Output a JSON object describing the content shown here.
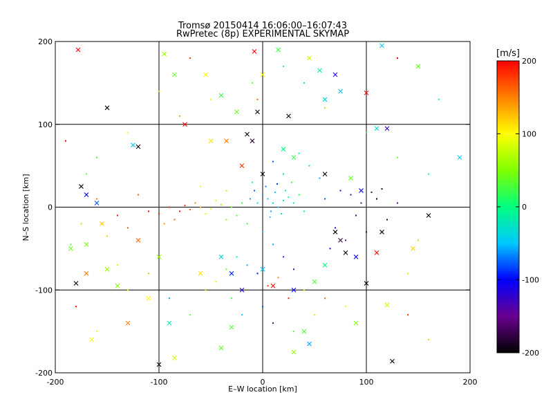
{
  "chart_data": {
    "type": "scatter",
    "title_line1": "Tromsø 20150414 16:06:00–16:07:43",
    "title_line2": "RwPretec (8p) EXPERIMENTAL SKYMAP",
    "xlabel": "E–W location [km]",
    "ylabel": "N–S location [km]",
    "xlim": [
      -200,
      200
    ],
    "ylim": [
      -200,
      200
    ],
    "xticks": [
      -200,
      -100,
      0,
      100,
      200
    ],
    "yticks": [
      -200,
      -100,
      0,
      100,
      200
    ],
    "grid_lines": [
      -100,
      0,
      100
    ],
    "grid": true,
    "color_variable": "velocity",
    "colorbar": {
      "unit_label": "[m/s]",
      "range": [
        -200,
        200
      ],
      "ticks": [
        200,
        100,
        0,
        -100,
        -200
      ],
      "stops": [
        {
          "v": -200,
          "color": "#000000"
        },
        {
          "v": -150,
          "color": "#6a0090"
        },
        {
          "v": -100,
          "color": "#0000ff"
        },
        {
          "v": -50,
          "color": "#00c8ff"
        },
        {
          "v": 0,
          "color": "#00ff80"
        },
        {
          "v": 50,
          "color": "#80ff00"
        },
        {
          "v": 100,
          "color": "#ffff00"
        },
        {
          "v": 150,
          "color": "#ff8000"
        },
        {
          "v": 200,
          "color": "#ff0000"
        }
      ]
    },
    "markers": {
      "small": "dot",
      "large": "x"
    },
    "points": [
      {
        "x": 5,
        "y": 10,
        "v": -50,
        "m": "dot"
      },
      {
        "x": 10,
        "y": 5,
        "v": -50,
        "m": "dot"
      },
      {
        "x": 15,
        "y": 0,
        "v": -50,
        "m": "dot"
      },
      {
        "x": 0,
        "y": 15,
        "v": -60,
        "m": "dot"
      },
      {
        "x": 12,
        "y": 18,
        "v": -40,
        "m": "dot"
      },
      {
        "x": 20,
        "y": 8,
        "v": -30,
        "m": "dot"
      },
      {
        "x": -5,
        "y": 5,
        "v": -45,
        "m": "dot"
      },
      {
        "x": 8,
        "y": -5,
        "v": -55,
        "m": "dot"
      },
      {
        "x": 18,
        "y": -8,
        "v": -35,
        "m": "dot"
      },
      {
        "x": 25,
        "y": 12,
        "v": -20,
        "m": "dot"
      },
      {
        "x": 3,
        "y": 25,
        "v": -70,
        "m": "dot"
      },
      {
        "x": -8,
        "y": 20,
        "v": -80,
        "m": "dot"
      },
      {
        "x": 14,
        "y": 28,
        "v": -90,
        "m": "dot"
      },
      {
        "x": 22,
        "y": 20,
        "v": -15,
        "m": "dot"
      },
      {
        "x": 7,
        "y": -12,
        "v": -50,
        "m": "dot"
      },
      {
        "x": -12,
        "y": 10,
        "v": -60,
        "m": "dot"
      },
      {
        "x": 30,
        "y": 5,
        "v": 0,
        "m": "dot"
      },
      {
        "x": 35,
        "y": 15,
        "v": 10,
        "m": "dot"
      },
      {
        "x": 40,
        "y": -5,
        "v": -10,
        "m": "dot"
      },
      {
        "x": 28,
        "y": 30,
        "v": 20,
        "m": "dot"
      },
      {
        "x": -20,
        "y": 5,
        "v": 20,
        "m": "dot"
      },
      {
        "x": -30,
        "y": 0,
        "v": 40,
        "m": "dot"
      },
      {
        "x": -25,
        "y": -10,
        "v": 30,
        "m": "dot"
      },
      {
        "x": -40,
        "y": 3,
        "v": 60,
        "m": "dot"
      },
      {
        "x": -50,
        "y": -2,
        "v": 90,
        "m": "dot"
      },
      {
        "x": -45,
        "y": 8,
        "v": 80,
        "m": "dot"
      },
      {
        "x": -60,
        "y": 0,
        "v": 130,
        "m": "dot"
      },
      {
        "x": -70,
        "y": -3,
        "v": 170,
        "m": "dot"
      },
      {
        "x": -75,
        "y": 2,
        "v": 190,
        "m": "dot"
      },
      {
        "x": -65,
        "y": 5,
        "v": 150,
        "m": "dot"
      },
      {
        "x": -55,
        "y": -8,
        "v": 110,
        "m": "dot"
      },
      {
        "x": -80,
        "y": -5,
        "v": 200,
        "m": "dot"
      },
      {
        "x": -90,
        "y": 0,
        "v": 180,
        "m": "dot"
      },
      {
        "x": -100,
        "y": -8,
        "v": 190,
        "m": "dot"
      },
      {
        "x": -110,
        "y": -5,
        "v": 200,
        "m": "dot"
      },
      {
        "x": -85,
        "y": -15,
        "v": 160,
        "m": "dot"
      },
      {
        "x": -95,
        "y": -20,
        "v": 140,
        "m": "dot"
      },
      {
        "x": -35,
        "y": -15,
        "v": 50,
        "m": "dot"
      },
      {
        "x": -15,
        "y": -20,
        "v": 20,
        "m": "dot"
      },
      {
        "x": -10,
        "y": 30,
        "v": 0,
        "m": "dot"
      },
      {
        "x": -35,
        "y": 20,
        "v": 70,
        "m": "dot"
      },
      {
        "x": -60,
        "y": 25,
        "v": 100,
        "m": "dot"
      },
      {
        "x": -120,
        "y": 15,
        "v": 160,
        "m": "dot"
      },
      {
        "x": -140,
        "y": -10,
        "v": 190,
        "m": "dot"
      },
      {
        "x": -130,
        "y": -25,
        "v": 170,
        "m": "dot"
      },
      {
        "x": -160,
        "y": 10,
        "v": 150,
        "m": "dot"
      },
      {
        "x": -150,
        "y": -35,
        "v": 120,
        "m": "dot"
      },
      {
        "x": -175,
        "y": -20,
        "v": 60,
        "m": "dot"
      },
      {
        "x": -185,
        "y": -45,
        "v": 30,
        "m": "dot"
      },
      {
        "x": -170,
        "y": 40,
        "v": 40,
        "m": "dot"
      },
      {
        "x": 60,
        "y": 10,
        "v": -80,
        "m": "dot"
      },
      {
        "x": 75,
        "y": 20,
        "v": -110,
        "m": "dot"
      },
      {
        "x": 85,
        "y": 15,
        "v": -130,
        "m": "dot"
      },
      {
        "x": 95,
        "y": 5,
        "v": -150,
        "m": "dot"
      },
      {
        "x": 105,
        "y": 18,
        "v": -170,
        "m": "dot"
      },
      {
        "x": 115,
        "y": 22,
        "v": -190,
        "m": "dot"
      },
      {
        "x": 110,
        "y": 10,
        "v": -200,
        "m": "dot"
      },
      {
        "x": 90,
        "y": -10,
        "v": -160,
        "m": "dot"
      },
      {
        "x": 70,
        "y": -25,
        "v": -120,
        "m": "dot"
      },
      {
        "x": 80,
        "y": -40,
        "v": -150,
        "m": "dot"
      },
      {
        "x": 65,
        "y": -50,
        "v": -100,
        "m": "dot"
      },
      {
        "x": 100,
        "y": -30,
        "v": -180,
        "m": "dot"
      },
      {
        "x": 120,
        "y": -15,
        "v": -190,
        "m": "dot"
      },
      {
        "x": 130,
        "y": 5,
        "v": -150,
        "m": "dot"
      },
      {
        "x": 55,
        "y": 35,
        "v": -60,
        "m": "dot"
      },
      {
        "x": 45,
        "y": 50,
        "v": -30,
        "m": "dot"
      },
      {
        "x": 35,
        "y": 65,
        "v": 0,
        "m": "dot"
      },
      {
        "x": 20,
        "y": 40,
        "v": -40,
        "m": "dot"
      },
      {
        "x": 10,
        "y": 55,
        "v": -80,
        "m": "dot"
      },
      {
        "x": 0,
        "y": -30,
        "v": -40,
        "m": "dot"
      },
      {
        "x": 10,
        "y": -45,
        "v": -60,
        "m": "dot"
      },
      {
        "x": 20,
        "y": -60,
        "v": -90,
        "m": "dot"
      },
      {
        "x": 30,
        "y": -75,
        "v": -120,
        "m": "dot"
      },
      {
        "x": 15,
        "y": -85,
        "v": 150,
        "m": "dot"
      },
      {
        "x": 5,
        "y": -95,
        "v": 180,
        "m": "dot"
      },
      {
        "x": -5,
        "y": -80,
        "v": -100,
        "m": "dot"
      },
      {
        "x": -15,
        "y": -70,
        "v": -60,
        "m": "dot"
      },
      {
        "x": -25,
        "y": -60,
        "v": 0,
        "m": "dot"
      },
      {
        "x": -35,
        "y": -75,
        "v": 40,
        "m": "dot"
      },
      {
        "x": -45,
        "y": -90,
        "v": 80,
        "m": "dot"
      },
      {
        "x": -55,
        "y": -100,
        "v": 60,
        "m": "dot"
      },
      {
        "x": -30,
        "y": -110,
        "v": 20,
        "m": "dot"
      },
      {
        "x": -20,
        "y": -130,
        "v": -40,
        "m": "dot"
      },
      {
        "x": 0,
        "y": -120,
        "v": -80,
        "m": "dot"
      },
      {
        "x": 10,
        "y": -140,
        "v": -160,
        "m": "dot"
      },
      {
        "x": 30,
        "y": -150,
        "v": 40,
        "m": "dot"
      },
      {
        "x": 50,
        "y": -130,
        "v": 80,
        "m": "dot"
      },
      {
        "x": 60,
        "y": -110,
        "v": 160,
        "m": "dot"
      },
      {
        "x": 80,
        "y": -120,
        "v": 100,
        "m": "dot"
      },
      {
        "x": 40,
        "y": -100,
        "v": 120,
        "m": "dot"
      },
      {
        "x": 25,
        "y": -110,
        "v": 190,
        "m": "dot"
      },
      {
        "x": -70,
        "y": -130,
        "v": 30,
        "m": "dot"
      },
      {
        "x": -90,
        "y": -110,
        "v": -60,
        "m": "dot"
      },
      {
        "x": -110,
        "y": -80,
        "v": 50,
        "m": "dot"
      },
      {
        "x": -130,
        "y": -100,
        "v": 70,
        "m": "dot"
      },
      {
        "x": -140,
        "y": -70,
        "v": 110,
        "m": "dot"
      },
      {
        "x": 140,
        "y": -80,
        "v": 80,
        "m": "dot"
      },
      {
        "x": 150,
        "y": -40,
        "v": 60,
        "m": "dot"
      },
      {
        "x": 160,
        "y": 40,
        "v": 0,
        "m": "dot"
      },
      {
        "x": 130,
        "y": 60,
        "v": 40,
        "m": "dot"
      },
      {
        "x": 100,
        "y": 90,
        "v": 20,
        "m": "dot"
      },
      {
        "x": 60,
        "y": 120,
        "v": 60,
        "m": "dot"
      },
      {
        "x": 40,
        "y": 150,
        "v": -20,
        "m": "dot"
      },
      {
        "x": 20,
        "y": 170,
        "v": 10,
        "m": "dot"
      },
      {
        "x": -10,
        "y": 150,
        "v": 30,
        "m": "dot"
      },
      {
        "x": -50,
        "y": 130,
        "v": 90,
        "m": "dot"
      },
      {
        "x": -80,
        "y": 110,
        "v": 140,
        "m": "dot"
      },
      {
        "x": -100,
        "y": 140,
        "v": 70,
        "m": "dot"
      },
      {
        "x": -130,
        "y": 90,
        "v": 100,
        "m": "dot"
      },
      {
        "x": -160,
        "y": 60,
        "v": 20,
        "m": "dot"
      },
      {
        "x": -190,
        "y": 80,
        "v": 200,
        "m": "dot"
      },
      {
        "x": 170,
        "y": 130,
        "v": 0,
        "m": "dot"
      },
      {
        "x": 130,
        "y": 180,
        "v": 200,
        "m": "dot"
      },
      {
        "x": -70,
        "y": 180,
        "v": 180,
        "m": "dot"
      },
      {
        "x": -5,
        "y": 130,
        "v": 160,
        "m": "dot"
      },
      {
        "x": 140,
        "y": -130,
        "v": 180,
        "m": "dot"
      },
      {
        "x": 160,
        "y": -160,
        "v": 120,
        "m": "dot"
      },
      {
        "x": -160,
        "y": -150,
        "v": 100,
        "m": "dot"
      },
      {
        "x": -180,
        "y": -120,
        "v": 200,
        "m": "dot"
      },
      {
        "x": -178,
        "y": 190,
        "v": 200,
        "m": "x"
      },
      {
        "x": -150,
        "y": 120,
        "v": -200,
        "m": "x"
      },
      {
        "x": -95,
        "y": 185,
        "v": 60,
        "m": "x"
      },
      {
        "x": -85,
        "y": 160,
        "v": 40,
        "m": "x"
      },
      {
        "x": -55,
        "y": 160,
        "v": 100,
        "m": "x"
      },
      {
        "x": -25,
        "y": 115,
        "v": 40,
        "m": "x"
      },
      {
        "x": -40,
        "y": 135,
        "v": 20,
        "m": "x"
      },
      {
        "x": -8,
        "y": 188,
        "v": 200,
        "m": "x"
      },
      {
        "x": 15,
        "y": 190,
        "v": 20,
        "m": "x"
      },
      {
        "x": 0,
        "y": 160,
        "v": 100,
        "m": "x"
      },
      {
        "x": -5,
        "y": 115,
        "v": -200,
        "m": "x"
      },
      {
        "x": 25,
        "y": 110,
        "v": -200,
        "m": "x"
      },
      {
        "x": 55,
        "y": 165,
        "v": -20,
        "m": "x"
      },
      {
        "x": 60,
        "y": 130,
        "v": -40,
        "m": "x"
      },
      {
        "x": 75,
        "y": 140,
        "v": -50,
        "m": "x"
      },
      {
        "x": 70,
        "y": 160,
        "v": -120,
        "m": "x"
      },
      {
        "x": 45,
        "y": 180,
        "v": 80,
        "m": "x"
      },
      {
        "x": 115,
        "y": 195,
        "v": -50,
        "m": "x"
      },
      {
        "x": 150,
        "y": 170,
        "v": 40,
        "m": "x"
      },
      {
        "x": 100,
        "y": 138,
        "v": 200,
        "m": "x"
      },
      {
        "x": 120,
        "y": 95,
        "v": -120,
        "m": "x"
      },
      {
        "x": 110,
        "y": 95,
        "v": -30,
        "m": "x"
      },
      {
        "x": -120,
        "y": 73,
        "v": -200,
        "m": "x"
      },
      {
        "x": -125,
        "y": 75,
        "v": -50,
        "m": "x"
      },
      {
        "x": -75,
        "y": 100,
        "v": 200,
        "m": "x"
      },
      {
        "x": -15,
        "y": 88,
        "v": -200,
        "m": "x"
      },
      {
        "x": -35,
        "y": 80,
        "v": 150,
        "m": "x"
      },
      {
        "x": -50,
        "y": 80,
        "v": 110,
        "m": "x"
      },
      {
        "x": -10,
        "y": 80,
        "v": -180,
        "m": "x"
      },
      {
        "x": 20,
        "y": 70,
        "v": 0,
        "m": "x"
      },
      {
        "x": -175,
        "y": 25,
        "v": -200,
        "m": "x"
      },
      {
        "x": -170,
        "y": 15,
        "v": -100,
        "m": "x"
      },
      {
        "x": -160,
        "y": 5,
        "v": -80,
        "m": "x"
      },
      {
        "x": -20,
        "y": 50,
        "v": 180,
        "m": "x"
      },
      {
        "x": 0,
        "y": 40,
        "v": -200,
        "m": "x"
      },
      {
        "x": 30,
        "y": 60,
        "v": 20,
        "m": "x"
      },
      {
        "x": 60,
        "y": 40,
        "v": -200,
        "m": "x"
      },
      {
        "x": 85,
        "y": 35,
        "v": 40,
        "m": "x"
      },
      {
        "x": 95,
        "y": 20,
        "v": -100,
        "m": "x"
      },
      {
        "x": 190,
        "y": 60,
        "v": -50,
        "m": "x"
      },
      {
        "x": 160,
        "y": -10,
        "v": -200,
        "m": "x"
      },
      {
        "x": 115,
        "y": -30,
        "v": -200,
        "m": "x"
      },
      {
        "x": 70,
        "y": -30,
        "v": -200,
        "m": "x"
      },
      {
        "x": 75,
        "y": -40,
        "v": -180,
        "m": "x"
      },
      {
        "x": 80,
        "y": -55,
        "v": -200,
        "m": "x"
      },
      {
        "x": 90,
        "y": -60,
        "v": -100,
        "m": "x"
      },
      {
        "x": 110,
        "y": -55,
        "v": 200,
        "m": "x"
      },
      {
        "x": 145,
        "y": -50,
        "v": 120,
        "m": "x"
      },
      {
        "x": -155,
        "y": -20,
        "v": 120,
        "m": "x"
      },
      {
        "x": -170,
        "y": -45,
        "v": 50,
        "m": "x"
      },
      {
        "x": -185,
        "y": -50,
        "v": 40,
        "m": "x"
      },
      {
        "x": -120,
        "y": -40,
        "v": 160,
        "m": "x"
      },
      {
        "x": -100,
        "y": -60,
        "v": 60,
        "m": "x"
      },
      {
        "x": -150,
        "y": -75,
        "v": 60,
        "m": "x"
      },
      {
        "x": -170,
        "y": -80,
        "v": 150,
        "m": "x"
      },
      {
        "x": -180,
        "y": -92,
        "v": -200,
        "m": "x"
      },
      {
        "x": -140,
        "y": -95,
        "v": 50,
        "m": "x"
      },
      {
        "x": -110,
        "y": -110,
        "v": 100,
        "m": "x"
      },
      {
        "x": -130,
        "y": -140,
        "v": 150,
        "m": "x"
      },
      {
        "x": -165,
        "y": -160,
        "v": 100,
        "m": "x"
      },
      {
        "x": -90,
        "y": -140,
        "v": -20,
        "m": "x"
      },
      {
        "x": -30,
        "y": -145,
        "v": 30,
        "m": "x"
      },
      {
        "x": -40,
        "y": -170,
        "v": 40,
        "m": "x"
      },
      {
        "x": -100,
        "y": -190,
        "v": -200,
        "m": "x"
      },
      {
        "x": -85,
        "y": -182,
        "v": 80,
        "m": "x"
      },
      {
        "x": 0,
        "y": -75,
        "v": -50,
        "m": "x"
      },
      {
        "x": 10,
        "y": -95,
        "v": 200,
        "m": "x"
      },
      {
        "x": 30,
        "y": -100,
        "v": -100,
        "m": "x"
      },
      {
        "x": 50,
        "y": -90,
        "v": 30,
        "m": "x"
      },
      {
        "x": 60,
        "y": -70,
        "v": 0,
        "m": "x"
      },
      {
        "x": 40,
        "y": -150,
        "v": 30,
        "m": "x"
      },
      {
        "x": 45,
        "y": -165,
        "v": -60,
        "m": "x"
      },
      {
        "x": 30,
        "y": -175,
        "v": 60,
        "m": "x"
      },
      {
        "x": 100,
        "y": -92,
        "v": -200,
        "m": "x"
      },
      {
        "x": 120,
        "y": -118,
        "v": 80,
        "m": "x"
      },
      {
        "x": 125,
        "y": -186,
        "v": -200,
        "m": "x"
      },
      {
        "x": 90,
        "y": -140,
        "v": 50,
        "m": "x"
      },
      {
        "x": -60,
        "y": -80,
        "v": 110,
        "m": "x"
      },
      {
        "x": -40,
        "y": -60,
        "v": -40,
        "m": "x"
      },
      {
        "x": -20,
        "y": -100,
        "v": -120,
        "m": "x"
      },
      {
        "x": -30,
        "y": -80,
        "v": -90,
        "m": "x"
      }
    ]
  }
}
